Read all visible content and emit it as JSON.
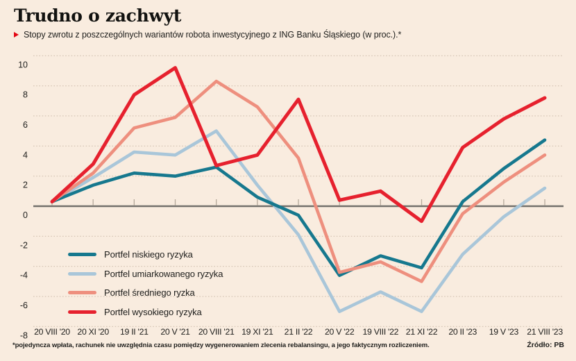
{
  "title": "Trudno o zachwyt",
  "subtitle": "Stopy zwrotu z poszczególnych wariantów robota inwestycyjnego z ING Banku Śląskiego (w proc.).*",
  "footnote": "*pojedyncza wpłata, rachunek nie uwzględnia czasu pomiędzy wygenerowaniem zlecenia rebalansingu, a jego faktycznym rozliczeniem.",
  "source": "Źródło: PB",
  "colors": {
    "background": "#f9ecdf",
    "accent_bullet": "#e30613",
    "text": "#1d1d1b",
    "gridline": "#d2c1b1",
    "zero_line": "#73706b",
    "axis_tick": "#b5a99b"
  },
  "chart_data": {
    "type": "line",
    "x": [
      "20 VIII '20",
      "20 XI '20",
      "19 II '21",
      "20 V '21",
      "20 VIII '21",
      "19 XI '21",
      "21 II '22",
      "20 V '22",
      "19 VIII '22",
      "21 XI '22",
      "20 II '23",
      "19 V '23",
      "21 VIII '23"
    ],
    "series": [
      {
        "name": "Portfel niskiego ryzyka",
        "color": "#16788e",
        "values": [
          0.3,
          1.4,
          2.2,
          2.0,
          2.6,
          0.6,
          -0.6,
          -4.6,
          -3.3,
          -4.1,
          0.3,
          2.5,
          4.4
        ]
      },
      {
        "name": "Portfel umiarkowanego ryzyka",
        "color": "#a9c6d9",
        "values": [
          0.3,
          1.9,
          3.6,
          3.4,
          5.0,
          1.4,
          -1.9,
          -7.0,
          -5.7,
          -7.0,
          -3.2,
          -0.7,
          1.2
        ]
      },
      {
        "name": "Portfel średniego ryzka",
        "color": "#ee8f7e",
        "values": [
          0.3,
          2.2,
          5.2,
          5.9,
          8.3,
          6.6,
          3.2,
          -4.4,
          -3.7,
          -5.0,
          -0.5,
          1.6,
          3.4
        ]
      },
      {
        "name": "Portfel wysokiego ryzyka",
        "color": "#e6212e",
        "values": [
          0.3,
          2.8,
          7.4,
          9.2,
          2.7,
          3.4,
          7.1,
          0.4,
          1.0,
          -1.0,
          3.9,
          5.8,
          7.2
        ]
      }
    ],
    "ylim": [
      -8,
      10
    ],
    "ytick_step": 2,
    "grid": "dotted-horizontal",
    "legend_position": "inside-bottom-left",
    "draw_order": [
      1,
      0,
      2,
      3
    ]
  }
}
